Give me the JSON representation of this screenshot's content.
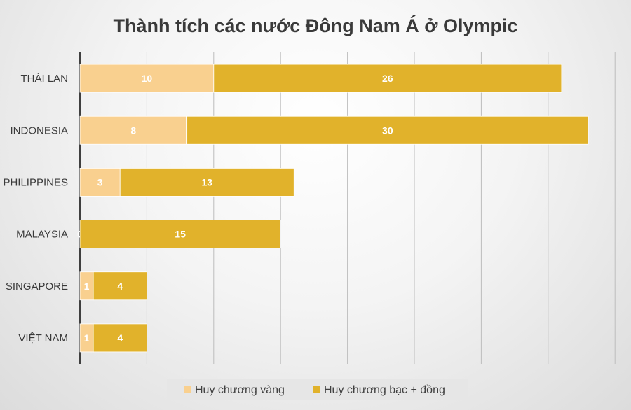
{
  "chart_data": {
    "type": "bar",
    "orientation": "horizontal",
    "stacked": true,
    "title": "Thành tích các nước Đông Nam Á ở Olympic",
    "xlabel": "",
    "ylabel": "",
    "categories": [
      "THÁI LAN",
      "INDONESIA",
      "PHILIPPINES",
      "MALAYSIA",
      "SINGAPORE",
      "VIỆT NAM"
    ],
    "series": [
      {
        "name": "Huy chương vàng",
        "values": [
          10,
          8,
          3,
          0,
          1,
          1
        ],
        "color": "#f9d08f"
      },
      {
        "name": "Huy chương bạc + đồng",
        "values": [
          26,
          30,
          13,
          15,
          4,
          4
        ],
        "color": "#e1b22b"
      }
    ],
    "xlim": [
      0,
      40
    ],
    "grid": true,
    "legend_position": "bottom",
    "data_labels": true
  }
}
